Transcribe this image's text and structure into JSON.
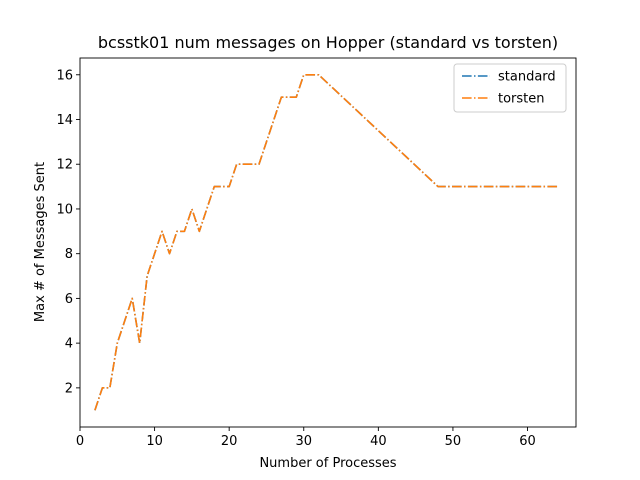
{
  "chart_data": {
    "type": "line",
    "title": "bcsstk01 num messages on Hopper (standard vs torsten)",
    "xlabel": "Number of Processes",
    "ylabel": "Max # of Messages Sent",
    "xlim": [
      0,
      66.5
    ],
    "ylim": [
      0.25,
      16.75
    ],
    "xticks": [
      0,
      10,
      20,
      30,
      40,
      50,
      60
    ],
    "yticks": [
      2,
      4,
      6,
      8,
      10,
      12,
      14,
      16
    ],
    "legend_position": "top-right",
    "grid": false,
    "x": [
      2,
      3,
      4,
      5,
      6,
      7,
      8,
      9,
      10,
      11,
      12,
      13,
      14,
      15,
      16,
      17,
      18,
      19,
      20,
      21,
      22,
      23,
      24,
      25,
      26,
      27,
      28,
      29,
      30,
      31,
      32,
      48,
      64
    ],
    "series": [
      {
        "name": "standard",
        "color": "#1f77b4",
        "linestyle": "dashdot",
        "values": [
          1,
          2,
          2,
          4,
          5,
          6,
          4,
          7,
          8,
          9,
          8,
          9,
          9,
          10,
          9,
          10,
          11,
          11,
          11,
          12,
          12,
          12,
          12,
          13,
          14,
          15,
          15,
          15,
          16,
          16,
          16,
          11,
          11
        ]
      },
      {
        "name": "torsten",
        "color": "#ff7f0e",
        "linestyle": "dashdot",
        "values": [
          1,
          2,
          2,
          4,
          5,
          6,
          4,
          7,
          8,
          9,
          8,
          9,
          9,
          10,
          9,
          10,
          11,
          11,
          11,
          12,
          12,
          12,
          12,
          13,
          14,
          15,
          15,
          15,
          16,
          16,
          16,
          11,
          11
        ]
      }
    ]
  }
}
